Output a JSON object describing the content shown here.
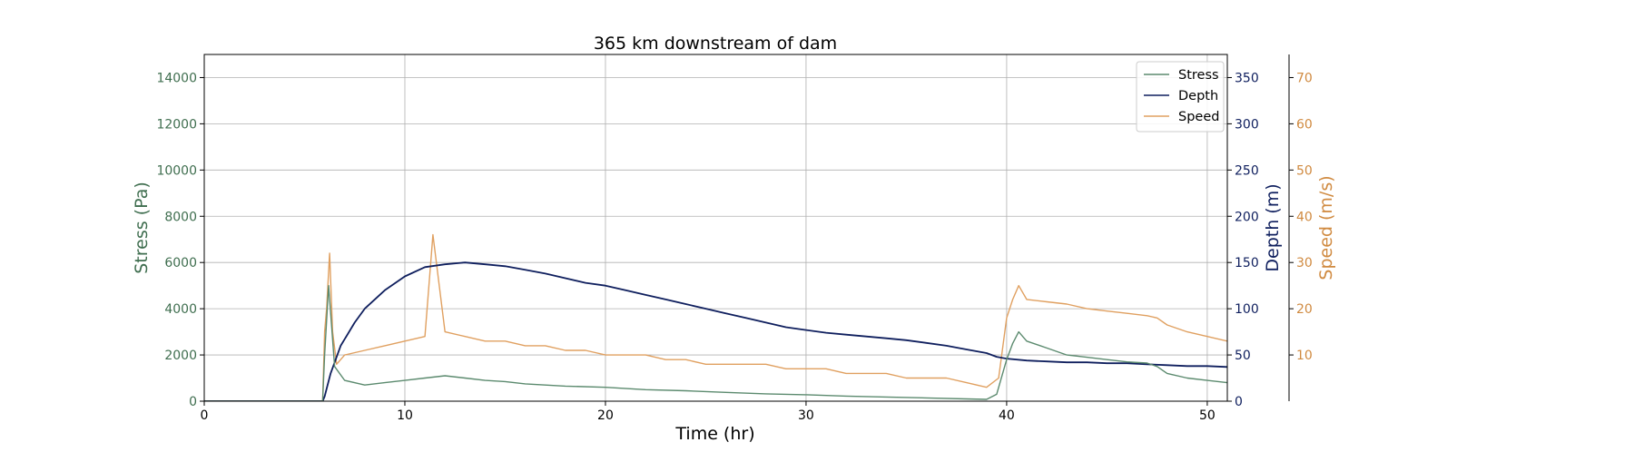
{
  "chart_data": {
    "type": "line",
    "title": "365 km downstream of dam",
    "xlabel": "Time (hr)",
    "xlim": [
      0,
      51
    ],
    "xticks": [
      0,
      10,
      20,
      30,
      40,
      50
    ],
    "grid": true,
    "legend": {
      "placement": "top-right",
      "entries": [
        "Stress",
        "Depth",
        "Speed"
      ]
    },
    "colors": {
      "stress": "#5b8a6e",
      "depth": "#0f1f5e",
      "speed": "#e0a060"
    },
    "axes": {
      "stress": {
        "label": "Stress (Pa)",
        "side": "left",
        "ylim": [
          0,
          15000
        ],
        "ticks": [
          0,
          2000,
          4000,
          6000,
          8000,
          10000,
          12000,
          14000
        ],
        "tick_color": "#3f6e4f"
      },
      "depth": {
        "label": "Depth (m)",
        "side": "right",
        "ylim": [
          0,
          375
        ],
        "ticks": [
          0,
          50,
          100,
          150,
          200,
          250,
          300,
          350
        ],
        "tick_color": "#0f1f5e"
      },
      "speed": {
        "label": "Speed (m/s)",
        "side": "right-outer",
        "ylim": [
          0,
          75
        ],
        "ticks": [
          10,
          20,
          30,
          40,
          50,
          60,
          70
        ],
        "tick_color": "#d08a40"
      }
    },
    "series": [
      {
        "name": "Stress",
        "axis": "stress",
        "x": [
          0,
          5.9,
          6.0,
          6.2,
          6.5,
          7,
          8,
          9,
          10,
          11,
          12,
          13,
          14,
          15,
          16,
          18,
          20,
          22,
          24,
          26,
          28,
          30,
          32,
          34,
          36,
          38,
          39,
          39.5,
          40,
          40.3,
          40.6,
          41,
          42,
          43,
          44,
          45,
          46,
          47,
          47.5,
          48,
          49,
          50,
          51
        ],
        "y": [
          0,
          0,
          2000,
          5000,
          1500,
          900,
          700,
          800,
          900,
          1000,
          1100,
          1000,
          900,
          850,
          750,
          650,
          600,
          500,
          450,
          380,
          320,
          280,
          220,
          180,
          140,
          100,
          80,
          300,
          1800,
          2500,
          3000,
          2600,
          2300,
          2000,
          1900,
          1800,
          1700,
          1650,
          1500,
          1200,
          1000,
          900,
          800
        ]
      },
      {
        "name": "Depth",
        "axis": "depth",
        "x": [
          0,
          5.9,
          6.0,
          6.3,
          6.8,
          7.5,
          8,
          9,
          10,
          11,
          12,
          13,
          14,
          15,
          16,
          17,
          18,
          19,
          20,
          21,
          22,
          23,
          24,
          25,
          26,
          27,
          28,
          29,
          30,
          31,
          32,
          33,
          34,
          35,
          36,
          37,
          38,
          39,
          39.5,
          40,
          41,
          42,
          43,
          44,
          45,
          46,
          47,
          48,
          49,
          50,
          51
        ],
        "y": [
          0,
          0,
          5,
          30,
          60,
          85,
          100,
          120,
          135,
          145,
          148,
          150,
          148,
          146,
          142,
          138,
          133,
          128,
          125,
          120,
          115,
          110,
          105,
          100,
          95,
          90,
          85,
          80,
          77,
          74,
          72,
          70,
          68,
          66,
          63,
          60,
          56,
          52,
          48,
          46,
          44,
          43,
          42,
          42,
          41,
          41,
          40,
          39,
          38,
          38,
          37
        ]
      },
      {
        "name": "Speed",
        "axis": "speed",
        "x": [
          0,
          5.9,
          6.0,
          6.1,
          6.25,
          6.4,
          6.6,
          7,
          8,
          9,
          10,
          11,
          11.4,
          12,
          13,
          14,
          15,
          16,
          17,
          18,
          19,
          20,
          21,
          22,
          23,
          24,
          25,
          26,
          27,
          28,
          29,
          30,
          31,
          32,
          33,
          34,
          35,
          36,
          37,
          38,
          39,
          39.6,
          40,
          40.3,
          40.6,
          41,
          42,
          43,
          44,
          45,
          46,
          47,
          47.5,
          48,
          49,
          50,
          51
        ],
        "y": [
          0,
          0,
          15,
          20,
          32,
          15,
          8,
          10,
          11,
          12,
          13,
          14,
          36,
          15,
          14,
          13,
          13,
          12,
          12,
          11,
          11,
          10,
          10,
          10,
          9,
          9,
          8,
          8,
          8,
          8,
          7,
          7,
          7,
          6,
          6,
          6,
          5,
          5,
          5,
          4,
          3,
          5,
          18,
          22,
          25,
          22,
          21.5,
          21,
          20,
          19.5,
          19,
          18.5,
          18,
          16.5,
          15,
          14,
          13
        ]
      }
    ]
  }
}
